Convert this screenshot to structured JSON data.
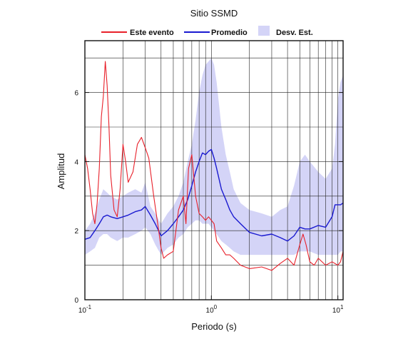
{
  "chart_data": {
    "type": "line",
    "title": "Sitio SSMD",
    "xlabel": "Periodo (s)",
    "ylabel": "Amplitud",
    "xscale": "log",
    "xlim": [
      0.1,
      11
    ],
    "ylim": [
      0,
      7.5
    ],
    "grid": true,
    "legend_position": "top",
    "x_tick_labels": [
      {
        "base": "10",
        "exp": "-1",
        "value": 0.1
      },
      {
        "base": "10",
        "exp": "0",
        "value": 1
      },
      {
        "base": "10",
        "exp": "1",
        "value": 10
      }
    ],
    "y_ticks": [
      {
        "label": "0",
        "value": 0
      },
      {
        "label": "2",
        "value": 2
      },
      {
        "label": "4",
        "value": 4
      },
      {
        "label": "6",
        "value": 6
      }
    ],
    "legend": [
      {
        "label": "Este evento",
        "kind": "line",
        "color": "#e8202a"
      },
      {
        "label": "Promedio",
        "kind": "line",
        "color": "#1a1ad0"
      },
      {
        "label": "Desv. Est.",
        "kind": "band",
        "color": "#d4d4f7"
      }
    ],
    "band": {
      "name": "Desv. Est.",
      "color": "#d4d4f7",
      "x": [
        0.1,
        0.11,
        0.12,
        0.13,
        0.14,
        0.15,
        0.16,
        0.18,
        0.2,
        0.22,
        0.25,
        0.28,
        0.3,
        0.33,
        0.36,
        0.4,
        0.45,
        0.5,
        0.55,
        0.6,
        0.65,
        0.7,
        0.75,
        0.8,
        0.85,
        0.9,
        0.95,
        1.0,
        1.05,
        1.1,
        1.2,
        1.3,
        1.4,
        1.5,
        1.7,
        2.0,
        2.5,
        3.0,
        3.5,
        4.0,
        4.5,
        5.0,
        5.5,
        6.0,
        7.0,
        8.0,
        9.0,
        9.5,
        10.0,
        10.5,
        11.0
      ],
      "upper": [
        2.0,
        2.2,
        2.5,
        2.9,
        3.2,
        3.1,
        3.0,
        2.9,
        3.0,
        3.1,
        3.2,
        3.1,
        3.4,
        2.7,
        2.5,
        2.2,
        2.5,
        2.7,
        3.0,
        3.4,
        4.0,
        4.5,
        5.2,
        6.0,
        6.5,
        6.8,
        6.9,
        7.0,
        6.8,
        6.3,
        5.0,
        4.2,
        3.7,
        3.2,
        2.8,
        2.6,
        2.5,
        2.4,
        2.6,
        2.7,
        3.3,
        4.0,
        4.2,
        4.0,
        3.7,
        3.5,
        3.8,
        4.5,
        5.8,
        6.3,
        6.5
      ],
      "lower": [
        1.3,
        1.4,
        1.5,
        1.8,
        1.9,
        1.9,
        1.8,
        1.7,
        1.8,
        1.8,
        1.9,
        2.0,
        2.1,
        1.9,
        1.6,
        1.3,
        1.5,
        1.6,
        1.8,
        1.9,
        2.1,
        2.2,
        2.3,
        2.3,
        2.2,
        2.2,
        2.2,
        2.1,
        2.0,
        1.9,
        1.7,
        1.6,
        1.5,
        1.4,
        1.3,
        1.3,
        1.3,
        1.3,
        1.3,
        1.3,
        1.3,
        1.4,
        1.4,
        1.4,
        1.3,
        1.3,
        1.3,
        1.3,
        1.3,
        1.4,
        1.4
      ]
    },
    "series": [
      {
        "name": "Promedio",
        "color": "#1a1ad0",
        "x": [
          0.1,
          0.11,
          0.12,
          0.13,
          0.14,
          0.15,
          0.16,
          0.18,
          0.2,
          0.22,
          0.25,
          0.28,
          0.3,
          0.33,
          0.36,
          0.4,
          0.45,
          0.5,
          0.55,
          0.6,
          0.65,
          0.7,
          0.75,
          0.8,
          0.85,
          0.9,
          0.95,
          1.0,
          1.05,
          1.1,
          1.2,
          1.3,
          1.4,
          1.5,
          1.7,
          2.0,
          2.5,
          3.0,
          3.5,
          4.0,
          4.5,
          5.0,
          5.5,
          6.0,
          7.0,
          8.0,
          9.0,
          9.5,
          10.0,
          10.5,
          11.0
        ],
        "y": [
          1.75,
          1.8,
          2.0,
          2.2,
          2.4,
          2.45,
          2.4,
          2.35,
          2.4,
          2.45,
          2.55,
          2.6,
          2.7,
          2.45,
          2.2,
          1.85,
          2.0,
          2.2,
          2.4,
          2.6,
          2.9,
          3.3,
          3.7,
          4.0,
          4.25,
          4.2,
          4.3,
          4.35,
          4.1,
          3.8,
          3.2,
          2.9,
          2.6,
          2.4,
          2.2,
          1.95,
          1.85,
          1.9,
          1.8,
          1.7,
          1.85,
          2.1,
          2.05,
          2.05,
          2.15,
          2.1,
          2.4,
          2.75,
          2.75,
          2.75,
          2.8
        ]
      },
      {
        "name": "Este evento",
        "color": "#e8202a",
        "x": [
          0.1,
          0.105,
          0.11,
          0.115,
          0.12,
          0.125,
          0.13,
          0.135,
          0.14,
          0.145,
          0.15,
          0.155,
          0.16,
          0.17,
          0.18,
          0.19,
          0.2,
          0.21,
          0.22,
          0.24,
          0.26,
          0.28,
          0.3,
          0.32,
          0.35,
          0.38,
          0.4,
          0.42,
          0.45,
          0.5,
          0.55,
          0.6,
          0.63,
          0.66,
          0.7,
          0.75,
          0.8,
          0.85,
          0.9,
          0.95,
          1.0,
          1.05,
          1.1,
          1.2,
          1.3,
          1.4,
          1.5,
          1.7,
          2.0,
          2.5,
          3.0,
          3.5,
          4.0,
          4.5,
          5.0,
          5.3,
          5.6,
          6.0,
          6.5,
          7.0,
          8.0,
          9.0,
          10.0,
          10.5,
          11.0
        ],
        "y": [
          4.2,
          3.8,
          3.2,
          2.5,
          2.2,
          2.8,
          3.8,
          5.3,
          5.9,
          6.9,
          6.2,
          5.0,
          3.6,
          2.6,
          2.4,
          3.2,
          4.5,
          4.0,
          3.4,
          3.7,
          4.5,
          4.7,
          4.4,
          4.1,
          3.0,
          2.1,
          1.5,
          1.2,
          1.3,
          1.4,
          2.6,
          3.0,
          2.2,
          3.8,
          4.2,
          3.0,
          2.5,
          2.4,
          2.3,
          2.4,
          2.3,
          2.2,
          1.7,
          1.5,
          1.3,
          1.3,
          1.2,
          1.0,
          0.9,
          0.95,
          0.85,
          1.05,
          1.2,
          1.0,
          1.6,
          1.9,
          1.6,
          1.1,
          1.0,
          1.2,
          1.0,
          1.1,
          1.0,
          1.1,
          1.4
        ]
      }
    ]
  }
}
